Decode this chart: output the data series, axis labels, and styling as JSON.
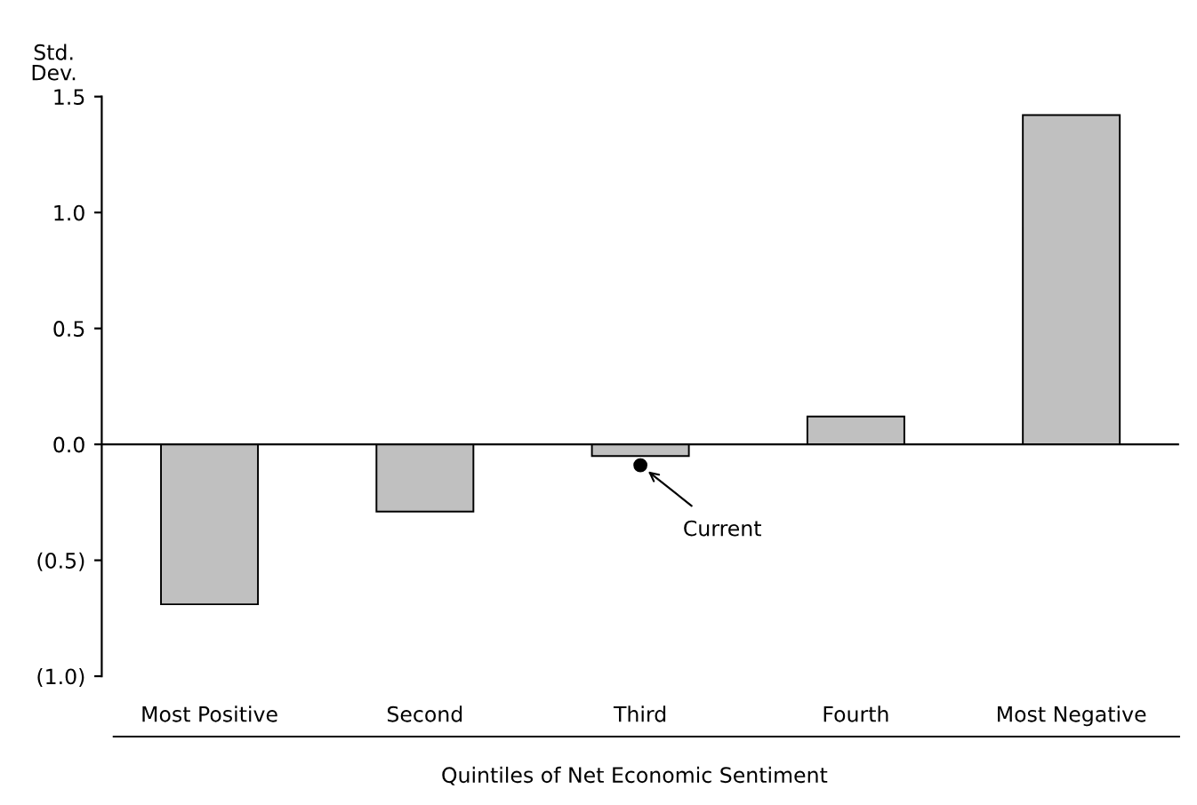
{
  "chart_data": {
    "type": "bar",
    "xlabel": "Quintiles of Net Economic Sentiment",
    "ylabel": "Std.\nDev.",
    "categories": [
      "Most Positive",
      "Second",
      "Third",
      "Fourth",
      "Most Negative"
    ],
    "series": [
      {
        "color": "#c0c0c0",
        "values": [
          -0.69,
          -0.29,
          -0.05,
          0.12,
          1.42
        ]
      },
      {
        "type": "scatter",
        "color": "#000000",
        "x": [
          "Third"
        ],
        "values": [
          -0.09
        ]
      }
    ],
    "ylim": [
      -1.0,
      1.5
    ],
    "yticks": [
      {
        "value": -1.0,
        "label": "(1.0)"
      },
      {
        "value": -0.5,
        "label": "(0.5)"
      },
      {
        "value": 0.0,
        "label": "0.0"
      },
      {
        "value": 0.5,
        "label": "0.5"
      },
      {
        "value": 1.0,
        "label": "1.0"
      },
      {
        "value": 1.5,
        "label": "1.5"
      }
    ],
    "annotations": [
      {
        "text": "Current",
        "x": "Third",
        "y": -0.09
      }
    ],
    "marker": "circle"
  }
}
